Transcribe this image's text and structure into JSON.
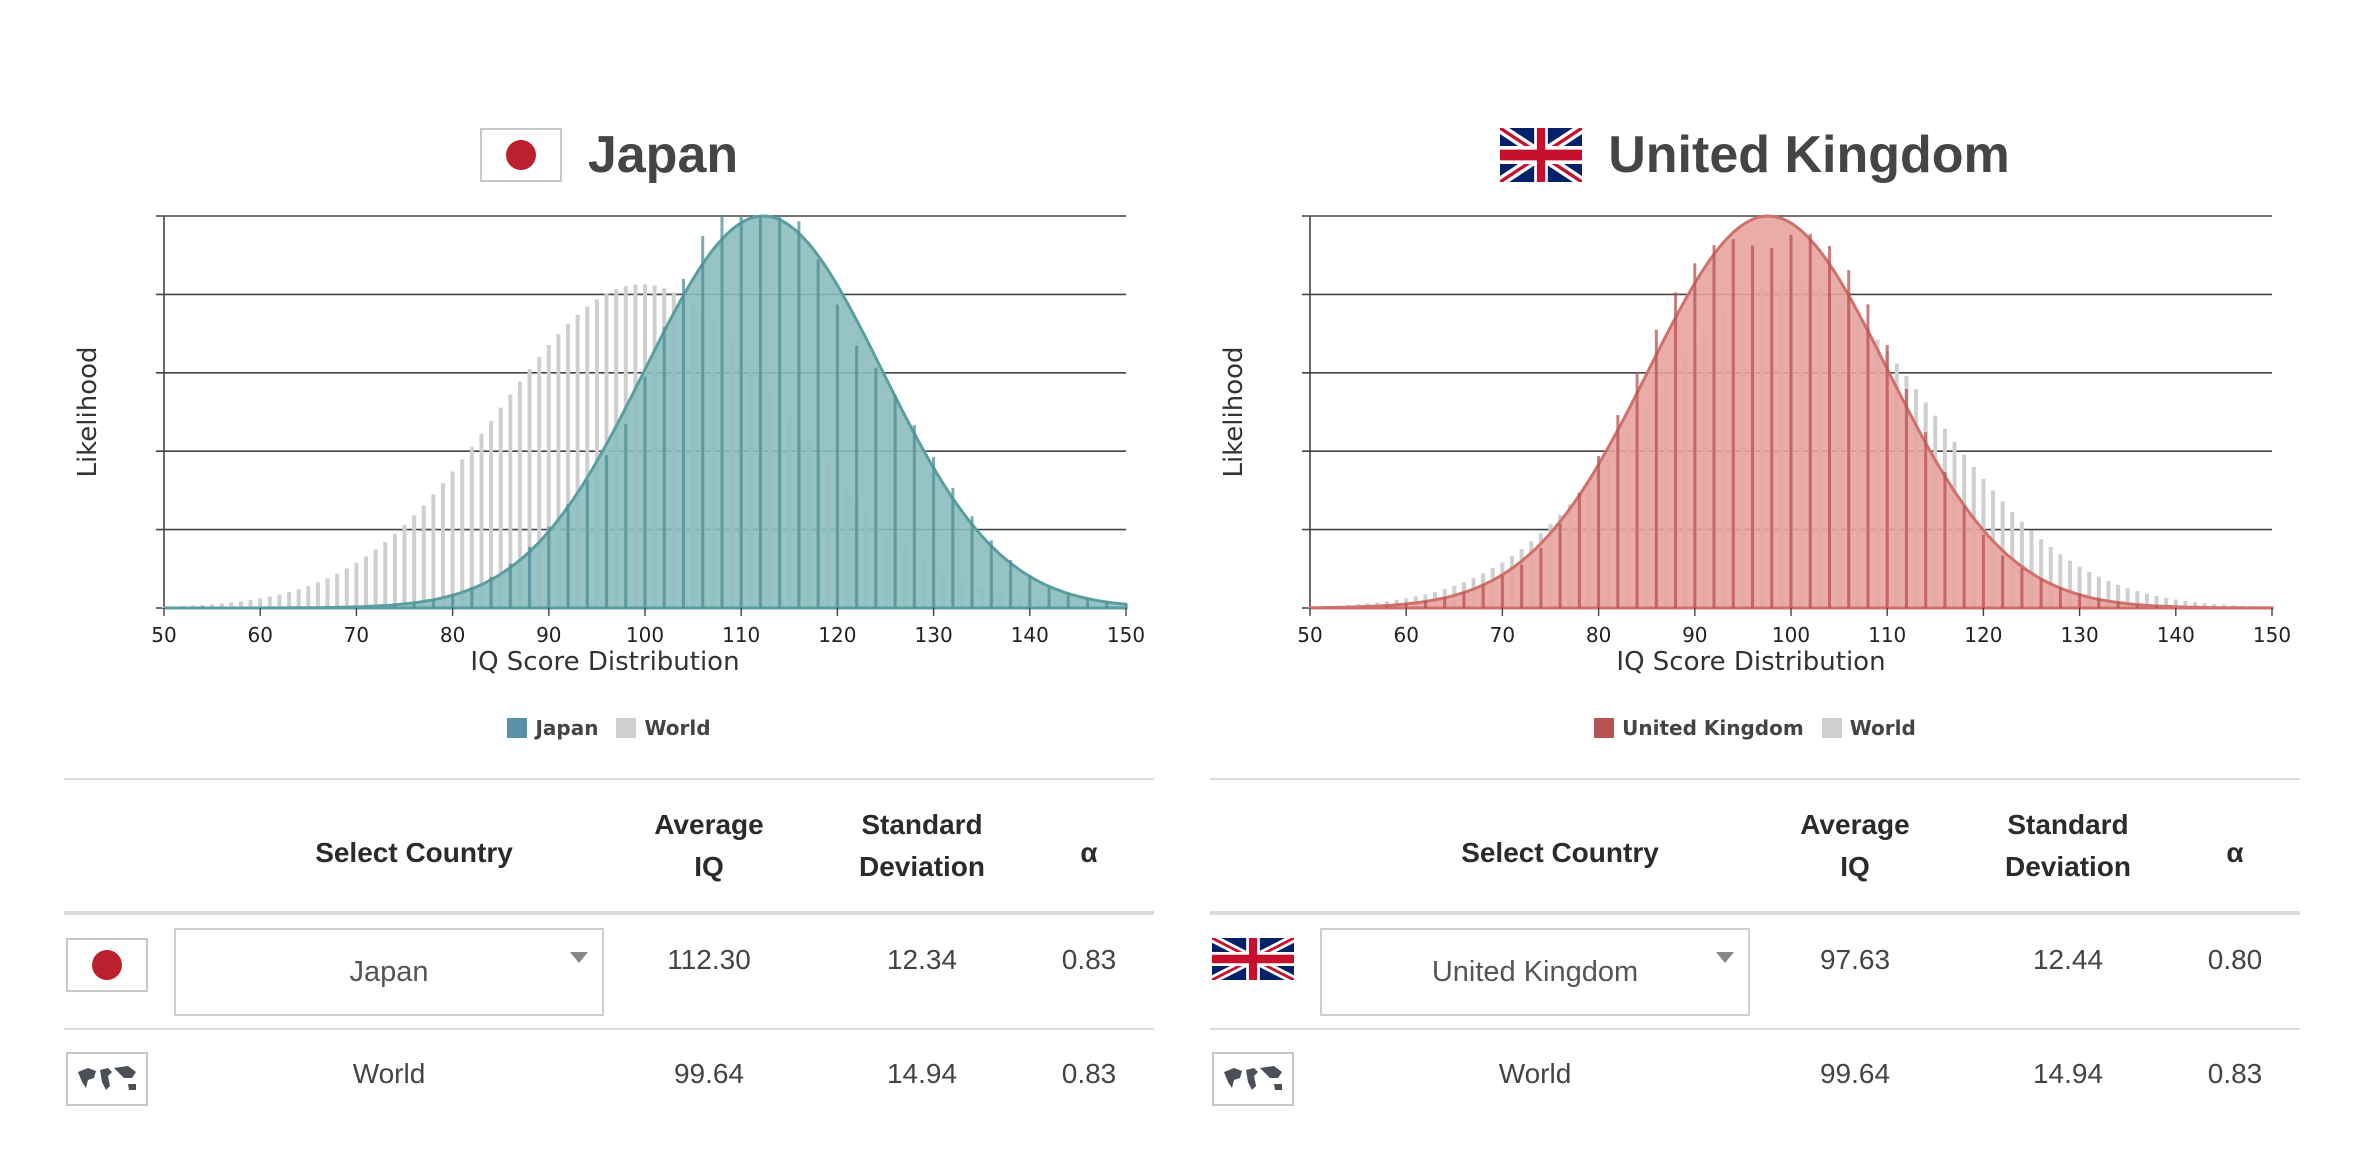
{
  "colors": {
    "japan_fill": "#8BBDBD",
    "japan_bar": "#4E8E96",
    "japan_line": "#5B9EA0",
    "japan_swatch": "#5B8FA8",
    "uk_fill": "#E7A39F",
    "uk_bar": "#B85252",
    "uk_line": "#D0706A",
    "uk_swatch": "#B85252",
    "world_bar": "#CFCFCF",
    "grid": "#444444"
  },
  "left": {
    "title": "Japan",
    "flag_icon": "japan-flag-icon",
    "legend": {
      "country": "Japan",
      "world": "World"
    },
    "table": {
      "headers": {
        "select": "Select Country",
        "avg_1": "Average",
        "avg_2": "IQ",
        "sd_1": "Standard",
        "sd_2": "Deviation",
        "alpha": "α"
      },
      "rows": [
        {
          "name": "Japan",
          "avg": "112.30",
          "sd": "12.34",
          "alpha": "0.83",
          "icon": "japan-flag-icon"
        },
        {
          "name": "World",
          "avg": "99.64",
          "sd": "14.94",
          "alpha": "0.83",
          "icon": "world-map-icon"
        }
      ]
    }
  },
  "right": {
    "title": "United Kingdom",
    "flag_icon": "uk-flag-icon",
    "legend": {
      "country": "United Kingdom",
      "world": "World"
    },
    "table": {
      "headers": {
        "select": "Select Country",
        "avg_1": "Average",
        "avg_2": "IQ",
        "sd_1": "Standard",
        "sd_2": "Deviation",
        "alpha": "α"
      },
      "rows": [
        {
          "name": "United Kingdom",
          "avg": "97.63",
          "sd": "12.44",
          "alpha": "0.80",
          "icon": "uk-flag-icon"
        },
        {
          "name": "World",
          "avg": "99.64",
          "sd": "14.94",
          "alpha": "0.83",
          "icon": "world-map-icon"
        }
      ]
    }
  },
  "chart_data": [
    {
      "type": "area",
      "xlabel": "IQ Score Distribution",
      "ylabel": "Likelihood",
      "xlim": [
        50,
        150
      ],
      "x_ticks": [
        50,
        60,
        70,
        80,
        90,
        100,
        110,
        120,
        130,
        140,
        150
      ],
      "grid": true,
      "legend_position": "bottom-center",
      "series": [
        {
          "name": "Japan",
          "distribution": "normal",
          "mean": 112.3,
          "sd": 12.34
        },
        {
          "name": "World",
          "distribution": "normal",
          "mean": 99.64,
          "sd": 14.94
        }
      ]
    },
    {
      "type": "area",
      "xlabel": "IQ Score Distribution",
      "ylabel": "Likelihood",
      "xlim": [
        50,
        150
      ],
      "x_ticks": [
        50,
        60,
        70,
        80,
        90,
        100,
        110,
        120,
        130,
        140,
        150
      ],
      "grid": true,
      "legend_position": "bottom-center",
      "series": [
        {
          "name": "United Kingdom",
          "distribution": "normal",
          "mean": 97.63,
          "sd": 12.44
        },
        {
          "name": "World",
          "distribution": "normal",
          "mean": 99.64,
          "sd": 14.94
        }
      ]
    }
  ]
}
